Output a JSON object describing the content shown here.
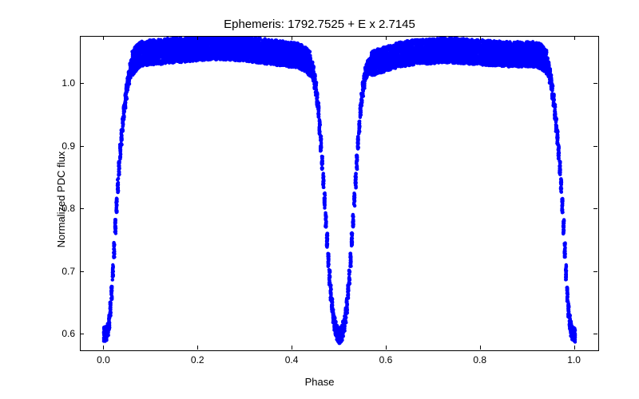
{
  "chart": {
    "type": "scatter",
    "title": "Ephemeris: 1792.7525 + E x 2.7145",
    "title_fontsize": 15,
    "xlabel": "Phase",
    "ylabel": "Normalized PDC flux",
    "label_fontsize": 13,
    "tick_fontsize": 12,
    "xlim": [
      -0.05,
      1.05
    ],
    "ylim": [
      0.575,
      1.075
    ],
    "xticks": [
      0.0,
      0.2,
      0.4,
      0.6,
      0.8,
      1.0
    ],
    "yticks": [
      0.6,
      0.7,
      0.8,
      0.9,
      1.0
    ],
    "background_color": "#ffffff",
    "border_color": "#000000",
    "text_color": "#000000",
    "marker_color": "#0000ff",
    "marker_size": 2.2,
    "curve": [
      [
        0.0,
        0.6
      ],
      [
        0.005,
        0.602
      ],
      [
        0.01,
        0.615
      ],
      [
        0.015,
        0.655
      ],
      [
        0.02,
        0.72
      ],
      [
        0.025,
        0.79
      ],
      [
        0.03,
        0.85
      ],
      [
        0.035,
        0.9
      ],
      [
        0.04,
        0.94
      ],
      [
        0.045,
        0.975
      ],
      [
        0.05,
        1.0
      ],
      [
        0.055,
        1.02
      ],
      [
        0.06,
        1.033
      ],
      [
        0.07,
        1.043
      ],
      [
        0.08,
        1.048
      ],
      [
        0.09,
        1.049
      ],
      [
        0.1,
        1.05
      ],
      [
        0.12,
        1.051
      ],
      [
        0.14,
        1.053
      ],
      [
        0.16,
        1.054
      ],
      [
        0.18,
        1.055
      ],
      [
        0.2,
        1.057
      ],
      [
        0.22,
        1.058
      ],
      [
        0.24,
        1.058
      ],
      [
        0.26,
        1.058
      ],
      [
        0.28,
        1.057
      ],
      [
        0.3,
        1.056
      ],
      [
        0.32,
        1.054
      ],
      [
        0.34,
        1.052
      ],
      [
        0.36,
        1.05
      ],
      [
        0.38,
        1.048
      ],
      [
        0.4,
        1.046
      ],
      [
        0.41,
        1.045
      ],
      [
        0.42,
        1.042
      ],
      [
        0.43,
        1.038
      ],
      [
        0.44,
        1.028
      ],
      [
        0.445,
        1.015
      ],
      [
        0.45,
        0.992
      ],
      [
        0.455,
        0.96
      ],
      [
        0.46,
        0.91
      ],
      [
        0.465,
        0.855
      ],
      [
        0.47,
        0.795
      ],
      [
        0.475,
        0.735
      ],
      [
        0.48,
        0.68
      ],
      [
        0.485,
        0.64
      ],
      [
        0.49,
        0.615
      ],
      [
        0.495,
        0.602
      ],
      [
        0.5,
        0.598
      ],
      [
        0.505,
        0.602
      ],
      [
        0.51,
        0.615
      ],
      [
        0.515,
        0.64
      ],
      [
        0.52,
        0.68
      ],
      [
        0.525,
        0.735
      ],
      [
        0.53,
        0.795
      ],
      [
        0.535,
        0.855
      ],
      [
        0.54,
        0.91
      ],
      [
        0.545,
        0.96
      ],
      [
        0.55,
        0.992
      ],
      [
        0.555,
        1.015
      ],
      [
        0.56,
        1.025
      ],
      [
        0.57,
        1.032
      ],
      [
        0.58,
        1.035
      ],
      [
        0.6,
        1.04
      ],
      [
        0.62,
        1.045
      ],
      [
        0.64,
        1.048
      ],
      [
        0.66,
        1.05
      ],
      [
        0.68,
        1.051
      ],
      [
        0.7,
        1.052
      ],
      [
        0.72,
        1.053
      ],
      [
        0.74,
        1.053
      ],
      [
        0.76,
        1.052
      ],
      [
        0.78,
        1.051
      ],
      [
        0.8,
        1.05
      ],
      [
        0.82,
        1.049
      ],
      [
        0.84,
        1.048
      ],
      [
        0.86,
        1.047
      ],
      [
        0.88,
        1.047
      ],
      [
        0.9,
        1.047
      ],
      [
        0.91,
        1.047
      ],
      [
        0.92,
        1.046
      ],
      [
        0.93,
        1.043
      ],
      [
        0.94,
        1.035
      ],
      [
        0.945,
        1.022
      ],
      [
        0.95,
        1.002
      ],
      [
        0.955,
        0.975
      ],
      [
        0.96,
        0.94
      ],
      [
        0.965,
        0.9
      ],
      [
        0.97,
        0.85
      ],
      [
        0.975,
        0.79
      ],
      [
        0.98,
        0.72
      ],
      [
        0.985,
        0.655
      ],
      [
        0.99,
        0.615
      ],
      [
        0.995,
        0.602
      ],
      [
        1.0,
        0.6
      ]
    ],
    "scatter_thickness": 0.012,
    "thickness_top": 0.02,
    "n_jitter": 26
  }
}
